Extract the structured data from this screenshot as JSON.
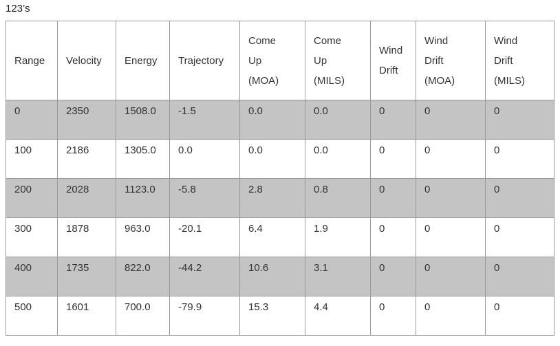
{
  "title": "123’s",
  "table": {
    "header": [
      [
        "Range"
      ],
      [
        "Velocity"
      ],
      [
        "Energy"
      ],
      [
        "Trajectory"
      ],
      [
        "Come",
        "Up",
        "(MOA)"
      ],
      [
        "Come",
        "Up",
        "(MILS)"
      ],
      [
        "Wind",
        "Drift"
      ],
      [
        "Wind",
        "Drift",
        "(MOA)"
      ],
      [
        "Wind",
        "Drift",
        "(MILS)"
      ]
    ],
    "rows": [
      [
        "0",
        "2350",
        "1508.0",
        "-1.5",
        "0.0",
        "0.0",
        "0",
        "0",
        "0"
      ],
      [
        "100",
        "2186",
        "1305.0",
        "0.0",
        "0.0",
        "0.0",
        "0",
        "0",
        "0"
      ],
      [
        "200",
        "2028",
        "1123.0",
        "-5.8",
        "2.8",
        "0.8",
        "0",
        "0",
        "0"
      ],
      [
        "300",
        "1878",
        "963.0",
        "-20.1",
        "6.4",
        "1.9",
        "0",
        "0",
        "0"
      ],
      [
        "400",
        "1735",
        "822.0",
        "-44.2",
        "10.6",
        "3.1",
        "0",
        "0",
        "0"
      ],
      [
        "500",
        "1601",
        "700.0",
        "-79.9",
        "15.3",
        "4.4",
        "0",
        "0",
        "0"
      ]
    ]
  }
}
